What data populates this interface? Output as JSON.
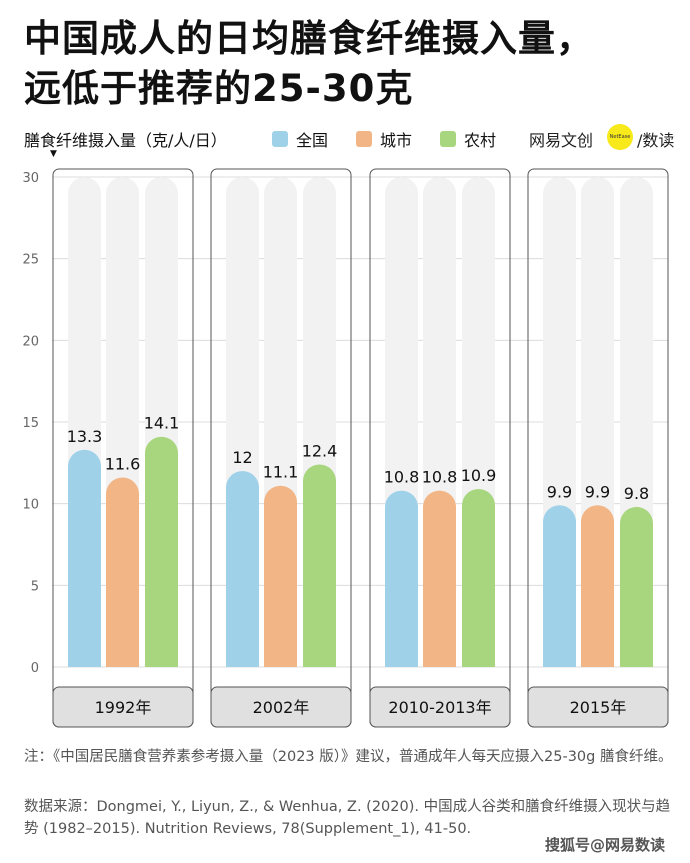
{
  "title_lines": [
    "中国成人的日均膳食纤维摄入量，",
    "远低于推荐的25-30克"
  ],
  "legend": {
    "unit": "膳食纤维摄入量（克/人/日）",
    "arrow": "▼",
    "items": [
      {
        "label": "全国",
        "color": "#9fd2e9"
      },
      {
        "label": "城市",
        "color": "#f2b585"
      },
      {
        "label": "农村",
        "color": "#a8d67e"
      }
    ]
  },
  "brand": {
    "name": "网易文创",
    "badge": "NetEase",
    "suffix": "/数读"
  },
  "chart_data": {
    "type": "bar",
    "categories": [
      "1992年",
      "2002年",
      "2010-2013年",
      "2015年"
    ],
    "series": [
      {
        "name": "全国",
        "values": [
          13.3,
          12,
          10.8,
          9.9
        ],
        "color": "#9fd2e9"
      },
      {
        "name": "城市",
        "values": [
          11.6,
          11.1,
          10.8,
          9.9
        ],
        "color": "#f2b585"
      },
      {
        "name": "农村",
        "values": [
          14.1,
          12.4,
          10.9,
          9.8
        ],
        "color": "#a8d67e"
      }
    ],
    "value_labels": [
      [
        "13.3",
        "12",
        "10.8",
        "9.9"
      ],
      [
        "11.6",
        "11.1",
        "10.8",
        "9.9"
      ],
      [
        "14.1",
        "12.4",
        "10.9",
        "9.8"
      ]
    ],
    "ylabel": "膳食纤维摄入量（克/人/日）",
    "ylim": [
      0,
      30
    ],
    "yticks": [
      0,
      5,
      10,
      15,
      20,
      25,
      30
    ],
    "grid": true,
    "legend_position": "top"
  },
  "notes": {
    "note": "注：《中国居民膳食营养素参考摄入量（2023 版）》建议，普通成年人每天应摄入25-30g 膳食纤维。",
    "source": "数据来源：Dongmei, Y., Liyun, Z., & Wenhua, Z. (2020). 中国成人谷类和膳食纤维摄入现状与趋势 (1982–2015). Nutrition Reviews, 78(Supplement_1), 41-50."
  },
  "watermark": "搜狐号@网易数读"
}
